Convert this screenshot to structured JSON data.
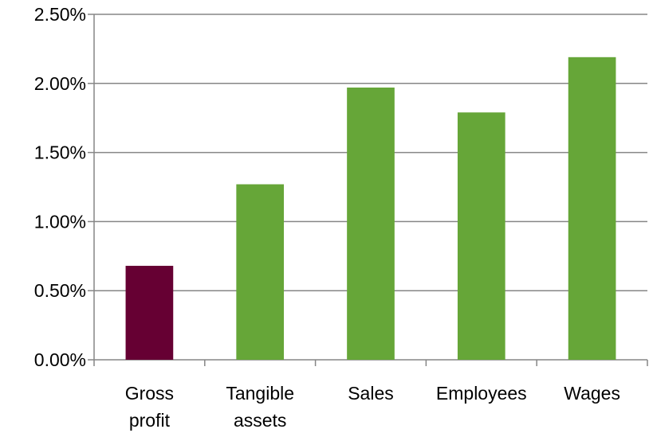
{
  "chart_data": {
    "type": "bar",
    "categories": [
      [
        "Gross",
        "profit"
      ],
      [
        "Tangible",
        "assets"
      ],
      [
        "Sales"
      ],
      [
        "Employees"
      ],
      [
        "Wages"
      ]
    ],
    "values": [
      0.0068,
      0.0127,
      0.0197,
      0.0179,
      0.0219
    ],
    "bar_colors": [
      "#660033",
      "#66a638",
      "#66a638",
      "#66a638",
      "#66a638"
    ],
    "yticks": [
      "0.00%",
      "0.50%",
      "1.00%",
      "1.50%",
      "2.00%",
      "2.50%"
    ],
    "ylim": [
      0,
      0.025
    ],
    "grid": "horizontal",
    "grid_color": "#868686",
    "axis_color": "#868686"
  }
}
